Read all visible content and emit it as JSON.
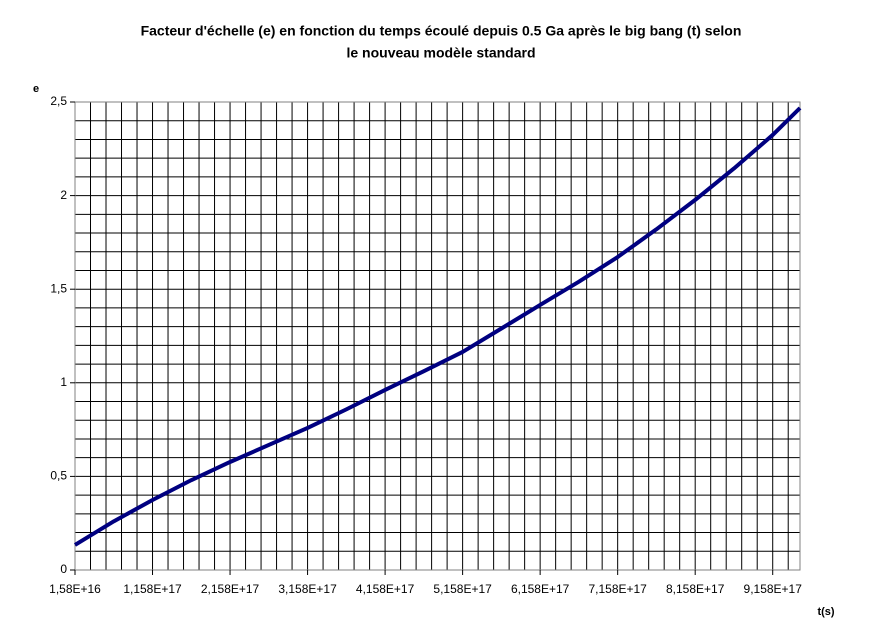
{
  "chart_data": {
    "type": "line",
    "title": [
      "Facteur d'échelle (e) en fonction du temps écoulé depuis 0.5 Ga après le big bang (t) selon",
      "le nouveau modèle standard"
    ],
    "y_label": "e",
    "x_label": "t(s)",
    "x": [
      1.58e+16,
      6.58e+16,
      1.158e+17,
      1.658e+17,
      2.158e+17,
      2.658e+17,
      3.158e+17,
      3.658e+17,
      4.158e+17,
      4.658e+17,
      5.158e+17,
      5.658e+17,
      6.158e+17,
      6.658e+17,
      7.158e+17,
      7.658e+17,
      8.158e+17,
      8.658e+17,
      9.158e+17,
      9.51e+17
    ],
    "series": [
      {
        "name": "e",
        "color": "#000080",
        "values": [
          0.134,
          0.26,
          0.374,
          0.48,
          0.577,
          0.668,
          0.759,
          0.858,
          0.962,
          1.062,
          1.165,
          1.29,
          1.416,
          1.54,
          1.672,
          1.82,
          1.977,
          2.145,
          2.324,
          2.468
        ]
      }
    ],
    "xlim": [
      1.58e+16,
      9.51e+17
    ],
    "ylim": [
      0,
      2.5
    ],
    "xticks": [
      {
        "value": 1.58e+16,
        "label": "1,58E+16"
      },
      {
        "value": 1.158e+17,
        "label": "1,158E+17"
      },
      {
        "value": 2.158e+17,
        "label": "2,158E+17"
      },
      {
        "value": 3.158e+17,
        "label": "3,158E+17"
      },
      {
        "value": 4.158e+17,
        "label": "4,158E+17"
      },
      {
        "value": 5.158e+17,
        "label": "5,158E+17"
      },
      {
        "value": 6.158e+17,
        "label": "6,158E+17"
      },
      {
        "value": 7.158e+17,
        "label": "7,158E+17"
      },
      {
        "value": 8.158e+17,
        "label": "8,158E+17"
      },
      {
        "value": 9.158e+17,
        "label": "9,158E+17"
      }
    ],
    "yticks": [
      0,
      {
        "value": 0.5,
        "label": "0,5"
      },
      1,
      {
        "value": 1.5,
        "label": "1,5"
      },
      2,
      {
        "value": 2.5,
        "label": "2,5"
      }
    ],
    "grid": true,
    "x_minor_step": 2e+16,
    "y_minor_step": 0.1
  }
}
